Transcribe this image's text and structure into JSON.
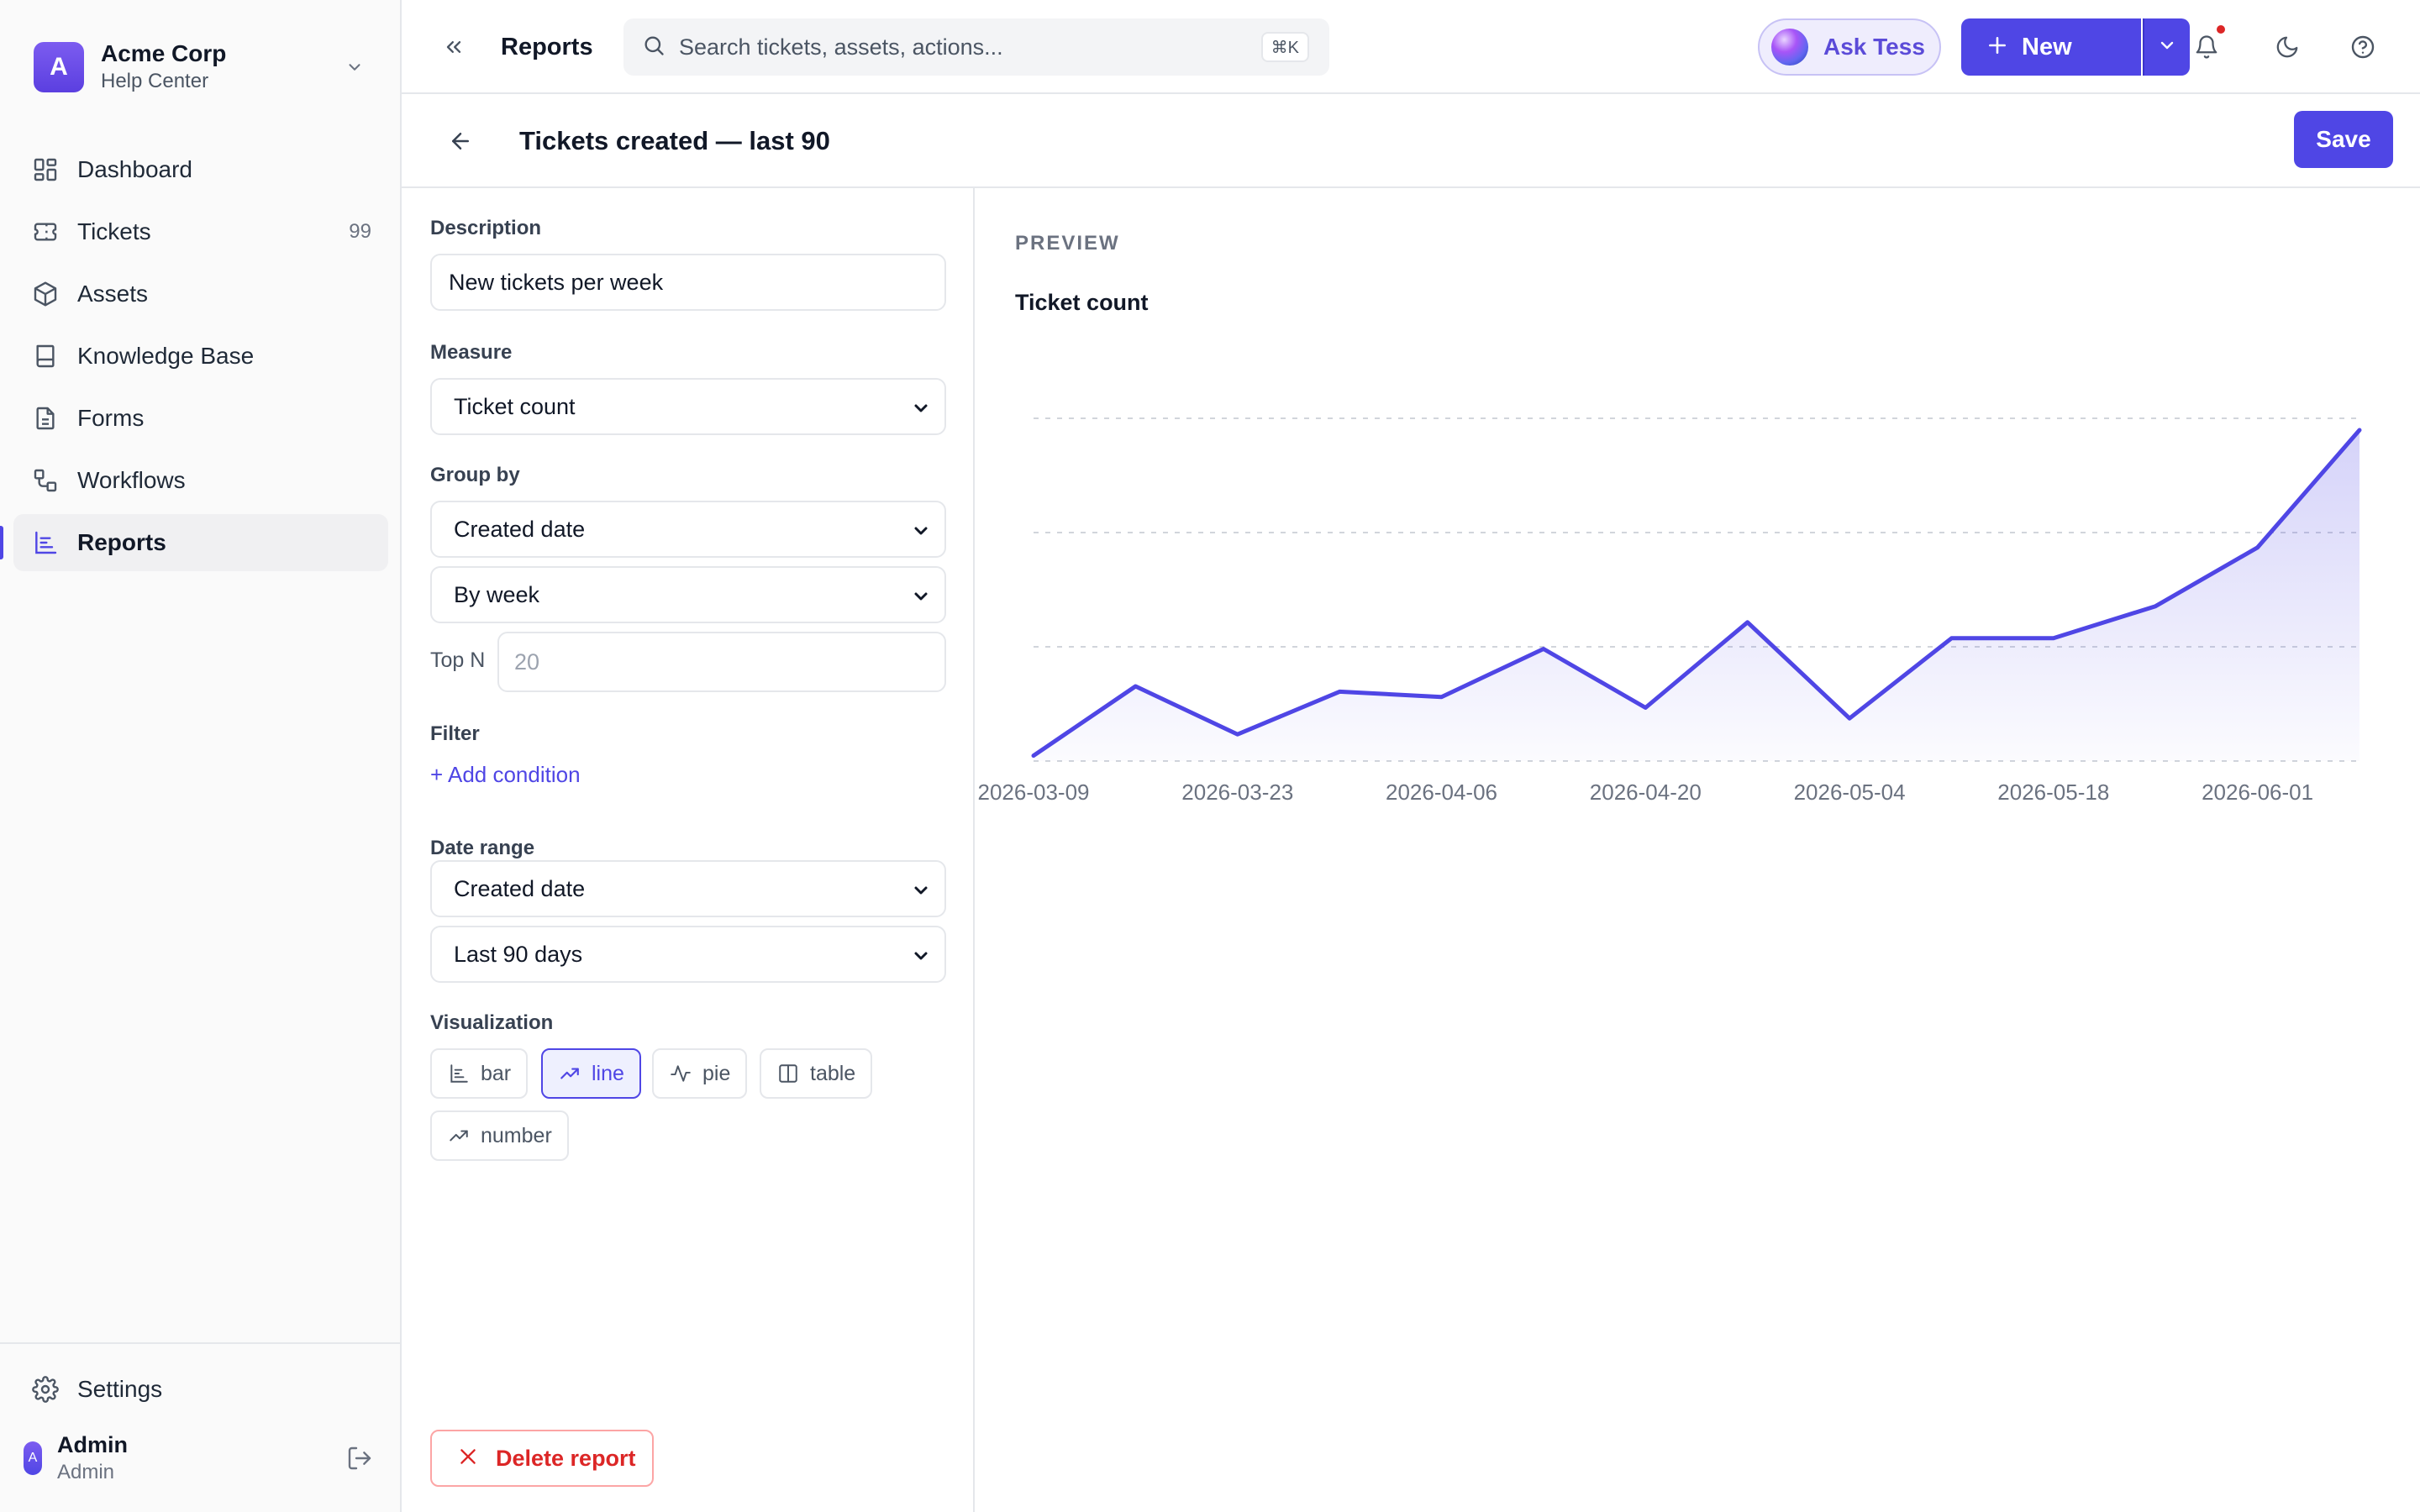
{
  "org": {
    "avatar_letter": "A",
    "name": "Acme Corp",
    "subtitle": "Help Center"
  },
  "sidebar": {
    "items": [
      {
        "label": "Dashboard",
        "icon": "dashboard-icon"
      },
      {
        "label": "Tickets",
        "icon": "ticket-icon",
        "count": "99"
      },
      {
        "label": "Assets",
        "icon": "box-icon"
      },
      {
        "label": "Knowledge Base",
        "icon": "book-icon"
      },
      {
        "label": "Forms",
        "icon": "form-icon"
      },
      {
        "label": "Workflows",
        "icon": "workflow-icon"
      },
      {
        "label": "Reports",
        "icon": "reports-icon",
        "active": true
      }
    ],
    "settings_label": "Settings",
    "user": {
      "avatar_letter": "A",
      "name": "Admin",
      "role": "Admin"
    }
  },
  "topbar": {
    "breadcrumb": "Reports",
    "search_placeholder": "Search tickets, assets, actions...",
    "search_shortcut": "⌘K",
    "ask_label": "Ask Tess",
    "new_label": "New"
  },
  "page": {
    "title": "Tickets created — last 90",
    "save_label": "Save"
  },
  "config": {
    "description_label": "Description",
    "description_value": "New tickets per week",
    "measure_label": "Measure",
    "measure_value": "Ticket count",
    "group_by_label": "Group by",
    "group_by_value": "Created date",
    "group_interval_value": "By week",
    "top_n_label": "Top N",
    "top_n_placeholder": "20",
    "filter_label": "Filter",
    "add_condition_label": "+ Add condition",
    "date_range_label": "Date range",
    "date_field_value": "Created date",
    "date_range_value": "Last 90 days",
    "visualization_label": "Visualization",
    "viz_options": [
      {
        "label": "bar",
        "icon": "bar-chart-icon"
      },
      {
        "label": "line",
        "icon": "trend-line-icon",
        "active": true
      },
      {
        "label": "pie",
        "icon": "pulse-icon"
      },
      {
        "label": "table",
        "icon": "table-columns-icon"
      },
      {
        "label": "number",
        "icon": "trend-up-icon"
      }
    ],
    "delete_label": "Delete report"
  },
  "preview": {
    "label": "PREVIEW"
  },
  "chart_data": {
    "type": "area",
    "title": "Ticket count",
    "xlabel": "",
    "ylabel": "",
    "x": [
      "2026-03-09",
      "2026-03-16",
      "2026-03-23",
      "2026-03-30",
      "2026-04-06",
      "2026-04-13",
      "2026-04-20",
      "2026-04-27",
      "2026-05-04",
      "2026-05-11",
      "2026-05-18",
      "2026-05-25",
      "2026-06-01",
      "2026-06-08"
    ],
    "x_tick_labels": [
      "2026-03-09",
      "2026-03-23",
      "2026-04-06",
      "2026-04-20",
      "2026-05-04",
      "2026-05-18",
      "2026-06-01"
    ],
    "series": [
      {
        "values": [
          1,
          14,
          5,
          13,
          12,
          21,
          10,
          26,
          8,
          23,
          23,
          29,
          40,
          62
        ]
      }
    ],
    "ylim": [
      0,
      62
    ],
    "grid": true,
    "color": "#4f46e5"
  }
}
